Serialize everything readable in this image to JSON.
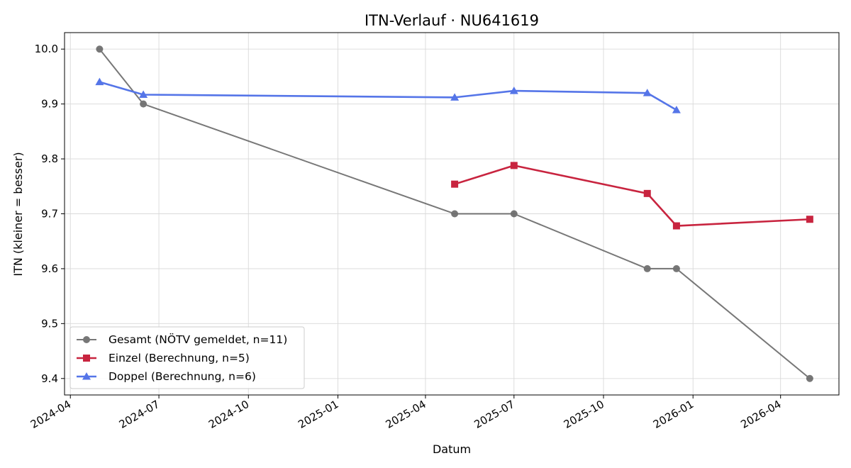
{
  "chart_data": {
    "type": "line",
    "title": "ITN-Verlauf · NU641619",
    "xlabel": "Datum",
    "ylabel": "ITN  (kleiner = besser)",
    "x_ticks": [
      "2024-04-01",
      "2024-07-01",
      "2024-10-01",
      "2025-01-01",
      "2025-04-01",
      "2025-07-01",
      "2025-10-01",
      "2026-01-01",
      "2026-04-01"
    ],
    "x_tick_labels": [
      "2024-04",
      "2024-07",
      "2024-10",
      "2025-01",
      "2025-04",
      "2025-07",
      "2025-10",
      "2026-01",
      "2026-04"
    ],
    "xlim": [
      "2024-03-26",
      "2026-05-31"
    ],
    "y_ticks": [
      9.4,
      9.5,
      9.6,
      9.7,
      9.8,
      9.9,
      10.0
    ],
    "y_tick_labels": [
      "9.4",
      "9.5",
      "9.6",
      "9.7",
      "9.8",
      "9.9",
      "10.0"
    ],
    "ylim": [
      9.37,
      10.03
    ],
    "grid": true,
    "legend_position": "lower-left",
    "series": [
      {
        "name": "Gesamt (NÖTV gemeldet, n=11)",
        "color": "#444444",
        "marker": "circle",
        "points": [
          {
            "x": "2024-05-01",
            "y": 10.0
          },
          {
            "x": "2024-06-15",
            "y": 9.9
          },
          {
            "x": "2025-05-01",
            "y": 9.7
          },
          {
            "x": "2025-07-01",
            "y": 9.7
          },
          {
            "x": "2025-11-15",
            "y": 9.6
          },
          {
            "x": "2025-12-15",
            "y": 9.6
          },
          {
            "x": "2026-05-01",
            "y": 9.4
          }
        ]
      },
      {
        "name": "Einzel (Berechnung, n=5)",
        "color": "#c8243f",
        "marker": "square",
        "points": [
          {
            "x": "2025-05-01",
            "y": 9.754
          },
          {
            "x": "2025-07-01",
            "y": 9.788
          },
          {
            "x": "2025-11-15",
            "y": 9.737
          },
          {
            "x": "2025-12-15",
            "y": 9.678
          },
          {
            "x": "2026-05-01",
            "y": 9.69
          }
        ]
      },
      {
        "name": "Doppel (Berechnung, n=6)",
        "color": "#5575e8",
        "marker": "triangle",
        "points": [
          {
            "x": "2024-05-01",
            "y": 9.94
          },
          {
            "x": "2024-06-15",
            "y": 9.917
          },
          {
            "x": "2025-05-01",
            "y": 9.912
          },
          {
            "x": "2025-07-01",
            "y": 9.924
          },
          {
            "x": "2025-11-15",
            "y": 9.92
          },
          {
            "x": "2025-12-15",
            "y": 9.889
          }
        ]
      }
    ]
  }
}
